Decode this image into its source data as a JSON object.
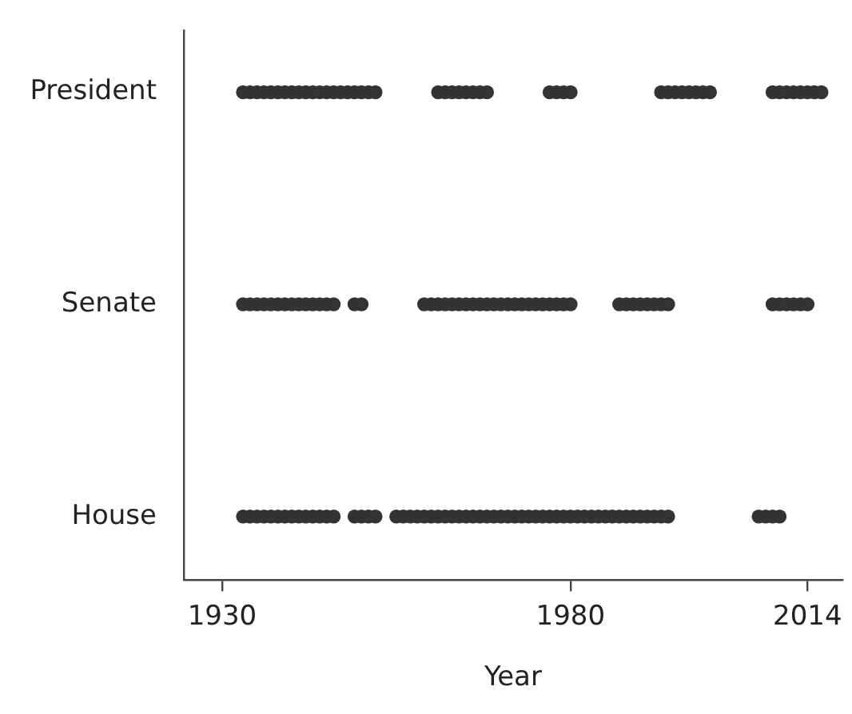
{
  "chart_data": {
    "type": "scatter",
    "orientation": "horizontal",
    "xlabel": "Year",
    "categories": [
      "President",
      "Senate",
      "House"
    ],
    "xlim": [
      1924.5,
      2019
    ],
    "xticks": [
      1930,
      1980,
      2014
    ],
    "grid": false,
    "legend": false,
    "marker": "circle",
    "series": [
      {
        "color": "#333333",
        "values": [
          1933,
          1934,
          1935,
          1936,
          1937,
          1938,
          1939,
          1940,
          1941,
          1942,
          1943,
          1944,
          1945,
          1946,
          1947,
          1948,
          1949,
          1950,
          1951,
          1952,
          1961,
          1962,
          1963,
          1964,
          1965,
          1966,
          1967,
          1968,
          1977,
          1978,
          1979,
          1980,
          1993,
          1994,
          1995,
          1996,
          1997,
          1998,
          1999,
          2000,
          2009,
          2010,
          2011,
          2012,
          2013,
          2014,
          2015,
          2016
        ],
        "x": [
          "President",
          "President",
          "President",
          "President",
          "President",
          "President",
          "President",
          "President",
          "President",
          "President",
          "President",
          "President",
          "President",
          "President",
          "President",
          "President",
          "President",
          "President",
          "President",
          "President",
          "President",
          "President",
          "President",
          "President",
          "President",
          "President",
          "President",
          "President",
          "President",
          "President",
          "President",
          "President",
          "President",
          "President",
          "President",
          "President",
          "President",
          "President",
          "President",
          "President",
          "President",
          "President",
          "President",
          "President",
          "President",
          "President",
          "President",
          "President"
        ]
      },
      {
        "color": "#333333",
        "values": [
          1933,
          1934,
          1935,
          1936,
          1937,
          1938,
          1939,
          1940,
          1941,
          1942,
          1943,
          1944,
          1945,
          1946,
          1949,
          1950,
          1959,
          1960,
          1961,
          1962,
          1963,
          1964,
          1965,
          1966,
          1967,
          1968,
          1969,
          1970,
          1971,
          1972,
          1973,
          1974,
          1975,
          1976,
          1977,
          1978,
          1979,
          1980,
          1987,
          1988,
          1989,
          1990,
          1991,
          1992,
          1993,
          1994,
          2009,
          2010,
          2011,
          2012,
          2013,
          2014
        ],
        "x": [
          "Senate",
          "Senate",
          "Senate",
          "Senate",
          "Senate",
          "Senate",
          "Senate",
          "Senate",
          "Senate",
          "Senate",
          "Senate",
          "Senate",
          "Senate",
          "Senate",
          "Senate",
          "Senate",
          "Senate",
          "Senate",
          "Senate",
          "Senate",
          "Senate",
          "Senate",
          "Senate",
          "Senate",
          "Senate",
          "Senate",
          "Senate",
          "Senate",
          "Senate",
          "Senate",
          "Senate",
          "Senate",
          "Senate",
          "Senate",
          "Senate",
          "Senate",
          "Senate",
          "Senate",
          "Senate",
          "Senate",
          "Senate",
          "Senate",
          "Senate",
          "Senate",
          "Senate",
          "Senate",
          "Senate",
          "Senate",
          "Senate",
          "Senate",
          "Senate",
          "Senate"
        ]
      },
      {
        "color": "#333333",
        "values": [
          1933,
          1934,
          1935,
          1936,
          1937,
          1938,
          1939,
          1940,
          1941,
          1942,
          1943,
          1944,
          1945,
          1946,
          1949,
          1950,
          1951,
          1952,
          1955,
          1956,
          1957,
          1958,
          1959,
          1960,
          1961,
          1962,
          1963,
          1964,
          1965,
          1966,
          1967,
          1968,
          1969,
          1970,
          1971,
          1972,
          1973,
          1974,
          1975,
          1976,
          1977,
          1978,
          1979,
          1980,
          1981,
          1982,
          1983,
          1984,
          1985,
          1986,
          1987,
          1988,
          1989,
          1990,
          1991,
          1992,
          1993,
          1994,
          2007,
          2008,
          2009,
          2010
        ],
        "x": [
          "House",
          "House",
          "House",
          "House",
          "House",
          "House",
          "House",
          "House",
          "House",
          "House",
          "House",
          "House",
          "House",
          "House",
          "House",
          "House",
          "House",
          "House",
          "House",
          "House",
          "House",
          "House",
          "House",
          "House",
          "House",
          "House",
          "House",
          "House",
          "House",
          "House",
          "House",
          "House",
          "House",
          "House",
          "House",
          "House",
          "House",
          "House",
          "House",
          "House",
          "House",
          "House",
          "House",
          "House",
          "House",
          "House",
          "House",
          "House",
          "House",
          "House",
          "House",
          "House",
          "House",
          "House",
          "House",
          "House",
          "House",
          "House",
          "House",
          "House",
          "House",
          "House"
        ]
      }
    ]
  }
}
